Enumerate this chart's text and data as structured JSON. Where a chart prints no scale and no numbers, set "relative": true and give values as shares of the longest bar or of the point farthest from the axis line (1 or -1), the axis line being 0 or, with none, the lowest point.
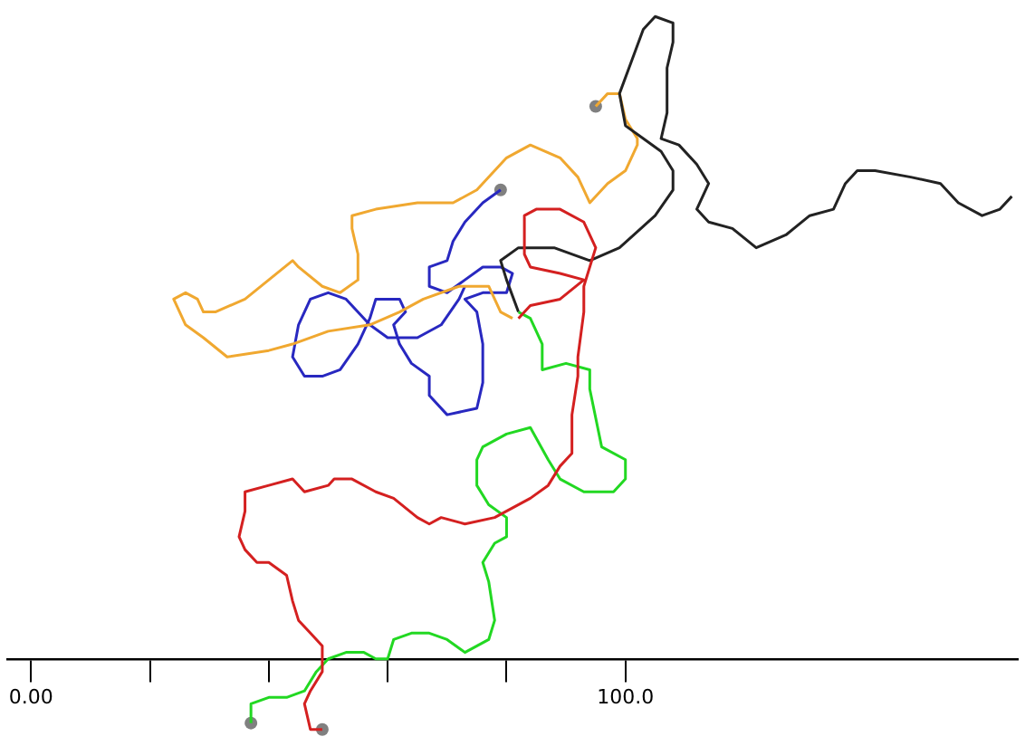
{
  "chart_data": {
    "type": "line",
    "relative": true,
    "xlim": [
      -4,
      166
    ],
    "xticks": [
      {
        "value": 0,
        "label": "0.00"
      },
      {
        "value": 20,
        "label": null
      },
      {
        "value": 40,
        "label": null
      },
      {
        "value": 60,
        "label": null
      },
      {
        "value": 80,
        "label": null
      },
      {
        "value": 100,
        "label": "100.0"
      }
    ],
    "tick_labels": "x",
    "grid": false,
    "legend": false,
    "series": [
      {
        "type": "line",
        "color": "#d42020",
        "x": [
          49,
          47,
          46,
          47,
          49,
          49,
          47,
          45,
          44,
          43,
          40,
          38,
          36,
          35,
          36,
          36,
          40,
          44,
          46,
          50,
          51,
          54,
          58,
          61,
          65,
          67,
          69,
          73,
          78,
          84,
          87,
          89,
          91,
          91,
          92,
          92,
          93,
          93,
          95,
          93,
          89,
          85,
          83,
          83,
          84,
          89,
          93,
          89,
          84,
          82
        ],
        "values": [
          -0.11,
          -0.11,
          -0.07,
          -0.05,
          -0.02,
          0.02,
          0.04,
          0.06,
          0.09,
          0.13,
          0.15,
          0.15,
          0.17,
          0.19,
          0.23,
          0.26,
          0.27,
          0.28,
          0.26,
          0.27,
          0.28,
          0.28,
          0.26,
          0.25,
          0.22,
          0.21,
          0.22,
          0.21,
          0.22,
          0.25,
          0.27,
          0.3,
          0.32,
          0.38,
          0.44,
          0.47,
          0.54,
          0.58,
          0.64,
          0.68,
          0.7,
          0.7,
          0.69,
          0.63,
          0.61,
          0.6,
          0.59,
          0.56,
          0.55,
          0.53
        ]
      },
      {
        "type": "line",
        "color": "#22d822",
        "x": [
          37,
          37,
          40,
          43,
          46,
          48,
          50,
          53,
          56,
          58,
          60,
          61,
          64,
          67,
          70,
          73,
          77,
          78,
          77,
          76,
          78,
          80,
          80,
          77,
          75,
          75,
          76,
          80,
          84,
          87,
          89,
          93,
          98,
          100,
          100,
          96,
          94,
          94,
          90,
          86,
          86,
          84,
          82
        ],
        "values": [
          -0.1,
          -0.07,
          -0.06,
          -0.06,
          -0.05,
          -0.02,
          0,
          0.01,
          0.01,
          0,
          0,
          0.03,
          0.04,
          0.04,
          0.03,
          0.01,
          0.03,
          0.06,
          0.12,
          0.15,
          0.18,
          0.19,
          0.22,
          0.24,
          0.27,
          0.31,
          0.33,
          0.35,
          0.36,
          0.31,
          0.28,
          0.26,
          0.26,
          0.28,
          0.31,
          0.33,
          0.42,
          0.45,
          0.46,
          0.45,
          0.49,
          0.53,
          0.54
        ]
      },
      {
        "type": "line",
        "color": "#222222",
        "x": [
          82,
          80,
          79,
          82,
          88,
          94,
          99,
          105,
          108,
          108,
          106,
          103,
          100,
          99,
          101,
          103,
          105,
          108,
          108,
          107,
          107,
          106,
          109,
          112,
          114,
          112,
          114,
          118,
          122,
          127,
          131,
          135,
          137,
          139,
          142,
          148,
          153,
          156,
          160,
          163,
          165
        ],
        "values": [
          0.54,
          0.59,
          0.62,
          0.64,
          0.64,
          0.62,
          0.64,
          0.69,
          0.73,
          0.76,
          0.79,
          0.81,
          0.83,
          0.88,
          0.93,
          0.98,
          1,
          0.99,
          0.96,
          0.92,
          0.85,
          0.81,
          0.8,
          0.77,
          0.74,
          0.7,
          0.68,
          0.67,
          0.64,
          0.66,
          0.69,
          0.7,
          0.74,
          0.76,
          0.76,
          0.75,
          0.74,
          0.71,
          0.69,
          0.7,
          0.72
        ]
      },
      {
        "type": "line",
        "color": "#f0a830",
        "x": [
          95,
          97,
          99,
          100,
          102,
          102,
          100,
          97,
          94,
          92,
          89,
          84,
          80,
          75,
          71,
          65,
          58,
          54,
          54,
          55,
          55,
          52,
          49,
          45,
          44,
          40,
          36,
          31,
          29,
          28,
          26,
          24,
          26,
          29,
          33,
          40,
          44,
          50,
          57,
          62,
          66,
          72,
          77,
          79,
          81
        ],
        "values": [
          0.86,
          0.88,
          0.88,
          0.84,
          0.81,
          0.8,
          0.76,
          0.74,
          0.71,
          0.75,
          0.78,
          0.8,
          0.78,
          0.73,
          0.71,
          0.71,
          0.7,
          0.69,
          0.67,
          0.63,
          0.59,
          0.57,
          0.58,
          0.61,
          0.62,
          0.59,
          0.56,
          0.54,
          0.54,
          0.56,
          0.57,
          0.56,
          0.52,
          0.5,
          0.47,
          0.48,
          0.49,
          0.51,
          0.52,
          0.54,
          0.56,
          0.58,
          0.58,
          0.54,
          0.53
        ]
      },
      {
        "type": "line",
        "color": "#2828c0",
        "x": [
          79,
          76,
          73,
          71,
          70,
          67,
          67,
          70,
          73,
          76,
          79,
          81,
          80,
          76,
          73,
          75,
          76,
          76,
          75,
          70,
          67,
          67,
          64,
          62,
          61,
          63,
          62,
          58,
          57,
          55,
          52,
          49,
          46,
          44,
          45,
          47,
          50,
          53,
          57,
          60,
          65,
          69,
          72,
          73
        ],
        "values": [
          0.73,
          0.71,
          0.68,
          0.65,
          0.62,
          0.61,
          0.58,
          0.57,
          0.59,
          0.61,
          0.61,
          0.6,
          0.57,
          0.57,
          0.56,
          0.54,
          0.49,
          0.43,
          0.39,
          0.38,
          0.41,
          0.44,
          0.46,
          0.49,
          0.52,
          0.54,
          0.56,
          0.56,
          0.53,
          0.49,
          0.45,
          0.44,
          0.44,
          0.47,
          0.52,
          0.56,
          0.57,
          0.56,
          0.52,
          0.5,
          0.5,
          0.52,
          0.56,
          0.58
        ]
      },
      {
        "type": "scatter",
        "color": "#808080",
        "x": [
          95,
          79,
          37,
          49
        ],
        "values": [
          0.86,
          0.73,
          -0.1,
          -0.11
        ]
      }
    ]
  }
}
